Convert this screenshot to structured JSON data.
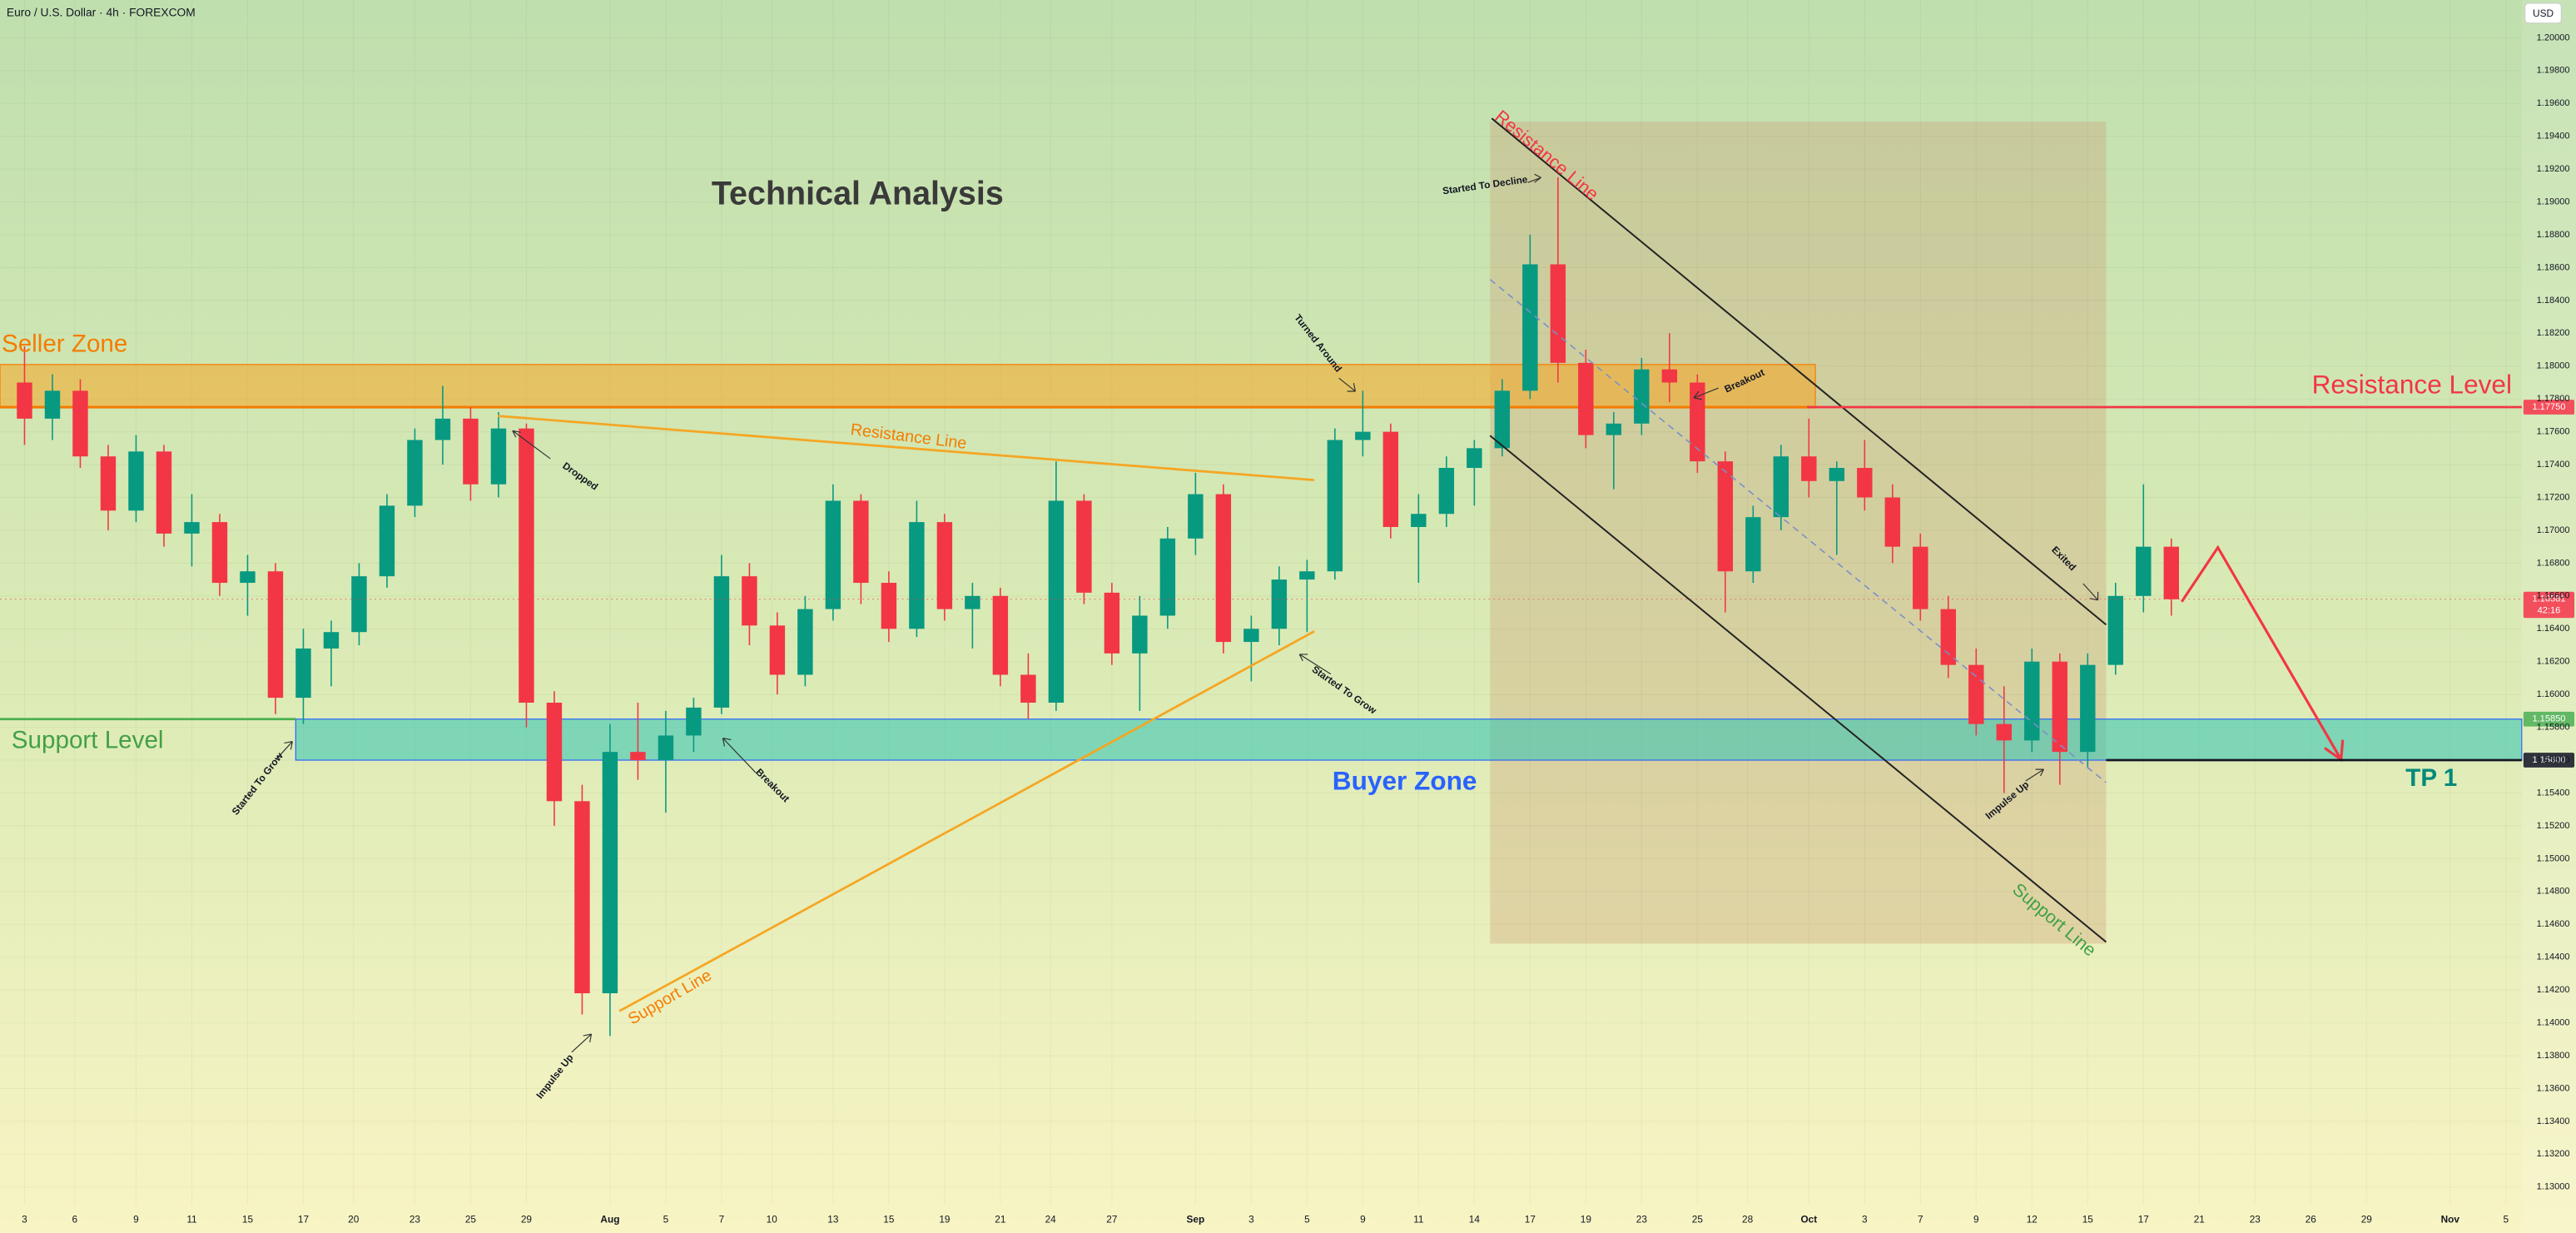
{
  "chart_data": {
    "type": "candlestick",
    "title": "Euro / U.S. Dollar · 4h · FOREXCOM",
    "currency": "USD",
    "up_color": "#089981",
    "down_color": "#f23645",
    "grid": true,
    "xlim": [
      -0.88,
      89.57
    ],
    "ylim": [
      1.1289,
      1.2023
    ],
    "xticks": [
      {
        "value": 0,
        "label": "3"
      },
      {
        "value": 1.8,
        "label": "6"
      },
      {
        "value": 4,
        "label": "9"
      },
      {
        "value": 6,
        "label": "11"
      },
      {
        "value": 8,
        "label": "15"
      },
      {
        "value": 10,
        "label": "17"
      },
      {
        "value": 11.8,
        "label": "20"
      },
      {
        "value": 14,
        "label": "23"
      },
      {
        "value": 16,
        "label": "25"
      },
      {
        "value": 18,
        "label": "29"
      },
      {
        "value": 21,
        "label": "Aug"
      },
      {
        "value": 23,
        "label": "5"
      },
      {
        "value": 25,
        "label": "7"
      },
      {
        "value": 26.8,
        "label": "10"
      },
      {
        "value": 29,
        "label": "13"
      },
      {
        "value": 31,
        "label": "15"
      },
      {
        "value": 33,
        "label": "19"
      },
      {
        "value": 35,
        "label": "21"
      },
      {
        "value": 36.8,
        "label": "24"
      },
      {
        "value": 39,
        "label": "27"
      },
      {
        "value": 42,
        "label": "Sep"
      },
      {
        "value": 44,
        "label": "3"
      },
      {
        "value": 46,
        "label": "5"
      },
      {
        "value": 48,
        "label": "9"
      },
      {
        "value": 50,
        "label": "11"
      },
      {
        "value": 52,
        "label": "14"
      },
      {
        "value": 54,
        "label": "17"
      },
      {
        "value": 56,
        "label": "19"
      },
      {
        "value": 58,
        "label": "23"
      },
      {
        "value": 60,
        "label": "25"
      },
      {
        "value": 61.8,
        "label": "28"
      },
      {
        "value": 64,
        "label": "Oct"
      },
      {
        "value": 66,
        "label": "3"
      },
      {
        "value": 68,
        "label": "7"
      },
      {
        "value": 70,
        "label": "9"
      },
      {
        "value": 72,
        "label": "12"
      },
      {
        "value": 74,
        "label": "15"
      },
      {
        "value": 76,
        "label": "17"
      },
      {
        "value": 78,
        "label": "21"
      },
      {
        "value": 80,
        "label": "23"
      },
      {
        "value": 82,
        "label": "26"
      },
      {
        "value": 84,
        "label": "29"
      },
      {
        "value": 87,
        "label": "Nov"
      },
      {
        "value": 89,
        "label": "5"
      }
    ],
    "yticks": [
      {
        "value": 1.2,
        "label": "1.20000"
      },
      {
        "value": 1.198,
        "label": "1.19800"
      },
      {
        "value": 1.196,
        "label": "1.19600"
      },
      {
        "value": 1.194,
        "label": "1.19400"
      },
      {
        "value": 1.192,
        "label": "1.19200"
      },
      {
        "value": 1.19,
        "label": "1.19000"
      },
      {
        "value": 1.188,
        "label": "1.18800"
      },
      {
        "value": 1.186,
        "label": "1.18600"
      },
      {
        "value": 1.184,
        "label": "1.18400"
      },
      {
        "value": 1.182,
        "label": "1.18200"
      },
      {
        "value": 1.18,
        "label": "1.18000"
      },
      {
        "value": 1.178,
        "label": "1.17800"
      },
      {
        "value": 1.176,
        "label": "1.17600"
      },
      {
        "value": 1.174,
        "label": "1.17400"
      },
      {
        "value": 1.172,
        "label": "1.17200"
      },
      {
        "value": 1.17,
        "label": "1.17000"
      },
      {
        "value": 1.168,
        "label": "1.16800"
      },
      {
        "value": 1.166,
        "label": "1.16600"
      },
      {
        "value": 1.164,
        "label": "1.16400"
      },
      {
        "value": 1.162,
        "label": "1.16200"
      },
      {
        "value": 1.16,
        "label": "1.16000"
      },
      {
        "value": 1.158,
        "label": "1.15800"
      },
      {
        "value": 1.156,
        "label": "1.15600"
      },
      {
        "value": 1.154,
        "label": "1.15400"
      },
      {
        "value": 1.152,
        "label": "1.15200"
      },
      {
        "value": 1.15,
        "label": "1.15000"
      },
      {
        "value": 1.148,
        "label": "1.14800"
      },
      {
        "value": 1.146,
        "label": "1.14600"
      },
      {
        "value": 1.144,
        "label": "1.14400"
      },
      {
        "value": 1.142,
        "label": "1.14200"
      },
      {
        "value": 1.14,
        "label": "1.14000"
      },
      {
        "value": 1.138,
        "label": "1.13800"
      },
      {
        "value": 1.136,
        "label": "1.13600"
      },
      {
        "value": 1.134,
        "label": "1.13400"
      },
      {
        "value": 1.132,
        "label": "1.13200"
      },
      {
        "value": 1.13,
        "label": "1.13000"
      }
    ],
    "x": [
      0,
      1,
      2,
      3,
      4,
      5,
      6,
      7,
      8,
      9,
      10,
      11,
      12,
      13,
      14,
      15,
      16,
      17,
      18,
      19,
      20,
      21,
      22,
      23,
      24,
      25,
      26,
      27,
      28,
      29,
      30,
      31,
      32,
      33,
      34,
      35,
      36,
      37,
      38,
      39,
      40,
      41,
      42,
      43,
      44,
      45,
      46,
      47,
      48,
      49,
      50,
      51,
      52,
      53,
      54,
      55,
      56,
      57,
      58,
      59,
      60,
      61,
      62,
      63,
      64,
      65,
      66,
      67,
      68,
      69,
      70,
      71,
      72,
      73,
      74,
      75,
      76,
      77
    ],
    "open": [
      1.179,
      1.1768,
      1.1785,
      1.1745,
      1.1712,
      1.1748,
      1.1698,
      1.1705,
      1.1668,
      1.1675,
      1.1598,
      1.1628,
      1.1638,
      1.1672,
      1.1715,
      1.1755,
      1.1768,
      1.1728,
      1.1762,
      1.1595,
      1.1535,
      1.1418,
      1.1565,
      1.156,
      1.1575,
      1.1592,
      1.1672,
      1.1642,
      1.1612,
      1.1652,
      1.1718,
      1.1668,
      1.164,
      1.1705,
      1.1652,
      1.166,
      1.1612,
      1.1595,
      1.1718,
      1.1662,
      1.1625,
      1.1648,
      1.1695,
      1.1722,
      1.1632,
      1.164,
      1.167,
      1.1675,
      1.1755,
      1.176,
      1.1702,
      1.171,
      1.1738,
      1.175,
      1.1785,
      1.1862,
      1.1802,
      1.1758,
      1.1765,
      1.1798,
      1.179,
      1.1742,
      1.1675,
      1.1708,
      1.1745,
      1.173,
      1.1738,
      1.172,
      1.169,
      1.1652,
      1.1618,
      1.1582,
      1.1572,
      1.162,
      1.1565,
      1.1618,
      1.166,
      1.169
    ],
    "high": [
      1.1812,
      1.1795,
      1.1792,
      1.1752,
      1.1758,
      1.1752,
      1.1722,
      1.171,
      1.1685,
      1.168,
      1.164,
      1.1645,
      1.168,
      1.1722,
      1.1762,
      1.1788,
      1.1775,
      1.1772,
      1.1765,
      1.1602,
      1.1545,
      1.1582,
      1.1595,
      1.159,
      1.1598,
      1.1685,
      1.168,
      1.165,
      1.166,
      1.1728,
      1.1722,
      1.1675,
      1.1718,
      1.171,
      1.1668,
      1.1665,
      1.1625,
      1.1742,
      1.1722,
      1.1668,
      1.166,
      1.1702,
      1.1735,
      1.1728,
      1.1648,
      1.1678,
      1.1682,
      1.1762,
      1.1785,
      1.1765,
      1.1722,
      1.1745,
      1.1755,
      1.1792,
      1.188,
      1.1915,
      1.181,
      1.1772,
      1.1805,
      1.182,
      1.1795,
      1.1748,
      1.1715,
      1.1752,
      1.1768,
      1.1742,
      1.1755,
      1.1728,
      1.1698,
      1.166,
      1.1628,
      1.1605,
      1.1628,
      1.1625,
      1.1625,
      1.1668,
      1.1728,
      1.1695
    ],
    "low": [
      1.1752,
      1.1755,
      1.1738,
      1.17,
      1.1705,
      1.169,
      1.1678,
      1.166,
      1.1648,
      1.1588,
      1.1582,
      1.1605,
      1.163,
      1.1665,
      1.1708,
      1.174,
      1.1718,
      1.172,
      1.158,
      1.152,
      1.1405,
      1.1392,
      1.1548,
      1.1528,
      1.1565,
      1.1588,
      1.163,
      1.16,
      1.1605,
      1.1645,
      1.1655,
      1.1632,
      1.1635,
      1.1645,
      1.1628,
      1.1605,
      1.1585,
      1.159,
      1.1655,
      1.1618,
      1.159,
      1.164,
      1.1685,
      1.1625,
      1.1608,
      1.163,
      1.1638,
      1.167,
      1.1745,
      1.1695,
      1.1668,
      1.1702,
      1.1715,
      1.1745,
      1.178,
      1.179,
      1.175,
      1.1725,
      1.1758,
      1.1778,
      1.1735,
      1.165,
      1.1668,
      1.17,
      1.172,
      1.1685,
      1.1712,
      1.168,
      1.1645,
      1.161,
      1.1575,
      1.154,
      1.1565,
      1.1545,
      1.1555,
      1.1612,
      1.165,
      1.1648
    ],
    "close": [
      1.1768,
      1.1785,
      1.1745,
      1.1712,
      1.1748,
      1.1698,
      1.1705,
      1.1668,
      1.1675,
      1.1598,
      1.1628,
      1.1638,
      1.1672,
      1.1715,
      1.1755,
      1.1768,
      1.1728,
      1.1762,
      1.1595,
      1.1535,
      1.1418,
      1.1565,
      1.156,
      1.1575,
      1.1592,
      1.1672,
      1.1642,
      1.1612,
      1.1652,
      1.1718,
      1.1668,
      1.164,
      1.1705,
      1.1652,
      1.166,
      1.1612,
      1.1595,
      1.1718,
      1.1662,
      1.1625,
      1.1648,
      1.1695,
      1.1722,
      1.1632,
      1.164,
      1.167,
      1.1675,
      1.1755,
      1.176,
      1.1702,
      1.171,
      1.1738,
      1.175,
      1.1785,
      1.1862,
      1.1802,
      1.1758,
      1.1765,
      1.1798,
      1.179,
      1.1742,
      1.1675,
      1.1708,
      1.1745,
      1.173,
      1.1738,
      1.172,
      1.169,
      1.1652,
      1.1618,
      1.1582,
      1.1572,
      1.162,
      1.1565,
      1.1618,
      1.166,
      1.169,
      1.1658
    ],
    "zones": [
      {
        "name": "Seller Zone",
        "low": 1.1775,
        "high": 1.1801,
        "color": "#f5a623"
      },
      {
        "name": "Buyer Zone",
        "low": 1.156,
        "high": 1.1585,
        "color": "#2ec4b6"
      }
    ],
    "levels": [
      {
        "value": 1.1775,
        "label": "1.17750",
        "color": "#f23645"
      },
      {
        "value": 1.1585,
        "label": "1.15850",
        "color": "#4caf50"
      },
      {
        "value": 1.156,
        "label": "1.15600",
        "color": "#131722"
      },
      {
        "value": 1.16581,
        "label": "1.16581",
        "timer": "42:16",
        "color": "#f23645"
      }
    ],
    "annotations": [
      {
        "text": "Technical Analysis",
        "color": "#3a3a3a"
      },
      {
        "text": "Seller Zone",
        "color": "#f57c00"
      },
      {
        "text": "Support Level",
        "color": "#43a047"
      },
      {
        "text": "Resistance Level",
        "color": "#f23645"
      },
      {
        "text": "Buyer Zone",
        "color": "#2962ff"
      },
      {
        "text": "TP 1",
        "color": "#00897b"
      },
      {
        "text": "Resistance Line",
        "color": "#f57c00"
      },
      {
        "text": "Support Line",
        "color": "#f57c00"
      },
      {
        "text": "Resistance Line",
        "color": "#f23645"
      },
      {
        "text": "Support Line",
        "color": "#43a047"
      },
      {
        "text": "Dropped",
        "color": "#131722"
      },
      {
        "text": "Started To Grow",
        "color": "#131722"
      },
      {
        "text": "Breakout",
        "color": "#131722"
      },
      {
        "text": "Impulse Up",
        "color": "#131722"
      },
      {
        "text": "Started To Grow",
        "color": "#131722"
      },
      {
        "text": "Turned Around",
        "color": "#131722"
      },
      {
        "text": "Started To Decline",
        "color": "#131722"
      },
      {
        "text": "Breakout",
        "color": "#131722"
      },
      {
        "text": "Exited",
        "color": "#131722"
      },
      {
        "text": "Impulse Up",
        "color": "#131722"
      }
    ]
  }
}
